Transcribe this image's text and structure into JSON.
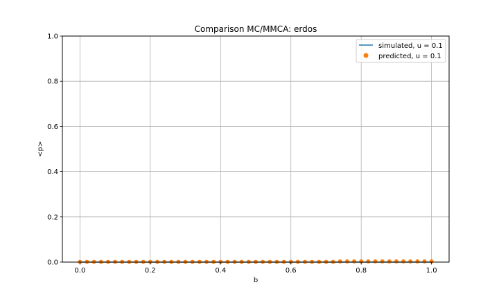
{
  "chart_data": {
    "type": "line",
    "title": "Comparison MC/MMCA: erdos",
    "xlabel": "b",
    "ylabel": "<p>",
    "xlim": [
      -0.05,
      1.05
    ],
    "ylim": [
      0.0,
      1.0
    ],
    "xticks": [
      "0.0",
      "0.2",
      "0.4",
      "0.6",
      "0.8",
      "1.0"
    ],
    "yticks": [
      "0.0",
      "0.2",
      "0.4",
      "0.6",
      "0.8",
      "1.0"
    ],
    "grid": true,
    "legend_position": "top-right",
    "series": [
      {
        "name": "simulated, u = 0.1",
        "style": "line",
        "color": "#1f77b4",
        "x": [
          0.0,
          0.02,
          0.04,
          0.06,
          0.08,
          0.1,
          0.12,
          0.14,
          0.16,
          0.18,
          0.2,
          0.22,
          0.24,
          0.26,
          0.28,
          0.3,
          0.32,
          0.34,
          0.36,
          0.38,
          0.4,
          0.42,
          0.44,
          0.46,
          0.48,
          0.5,
          0.52,
          0.54,
          0.56,
          0.58,
          0.6,
          0.62,
          0.64,
          0.66,
          0.68,
          0.7,
          0.72,
          0.74,
          0.76,
          0.78,
          0.8,
          0.82,
          0.84,
          0.86,
          0.88,
          0.9,
          0.92,
          0.94,
          0.96,
          0.98,
          1.0
        ],
        "y": [
          0.0,
          0.0,
          0.0,
          0.0,
          0.0,
          0.0,
          0.0,
          0.0,
          0.0,
          0.0,
          0.0,
          0.0,
          0.0,
          0.0,
          0.0,
          0.0,
          0.0,
          0.0,
          0.0,
          0.0,
          0.0,
          0.0,
          0.0,
          0.0,
          0.0,
          0.0,
          0.0,
          0.0,
          0.0,
          0.0,
          0.0,
          0.0,
          0.0,
          0.0,
          0.0,
          0.0,
          0.0,
          0.0,
          0.0,
          0.0,
          0.0,
          0.0,
          0.0,
          0.0,
          0.0,
          0.0,
          0.0,
          0.0,
          0.0,
          0.0,
          0.0
        ]
      },
      {
        "name": "predicted, u = 0.1",
        "style": "markers",
        "color": "#ff7f0e",
        "x": [
          0.0,
          0.02,
          0.04,
          0.06,
          0.08,
          0.1,
          0.12,
          0.14,
          0.16,
          0.18,
          0.2,
          0.22,
          0.24,
          0.26,
          0.28,
          0.3,
          0.32,
          0.34,
          0.36,
          0.38,
          0.4,
          0.42,
          0.44,
          0.46,
          0.48,
          0.5,
          0.52,
          0.54,
          0.56,
          0.58,
          0.6,
          0.62,
          0.64,
          0.66,
          0.68,
          0.7,
          0.72,
          0.74,
          0.76,
          0.78,
          0.8,
          0.82,
          0.84,
          0.86,
          0.88,
          0.9,
          0.92,
          0.94,
          0.96,
          0.98,
          1.0
        ],
        "y": [
          0.001,
          0.001,
          0.001,
          0.001,
          0.001,
          0.001,
          0.001,
          0.001,
          0.001,
          0.001,
          0.001,
          0.001,
          0.001,
          0.001,
          0.001,
          0.001,
          0.001,
          0.001,
          0.001,
          0.001,
          0.001,
          0.001,
          0.001,
          0.001,
          0.001,
          0.001,
          0.001,
          0.001,
          0.001,
          0.001,
          0.001,
          0.001,
          0.001,
          0.001,
          0.001,
          0.001,
          0.001,
          0.003,
          0.003,
          0.003,
          0.003,
          0.003,
          0.003,
          0.003,
          0.003,
          0.003,
          0.003,
          0.003,
          0.003,
          0.003,
          0.003
        ]
      }
    ]
  }
}
